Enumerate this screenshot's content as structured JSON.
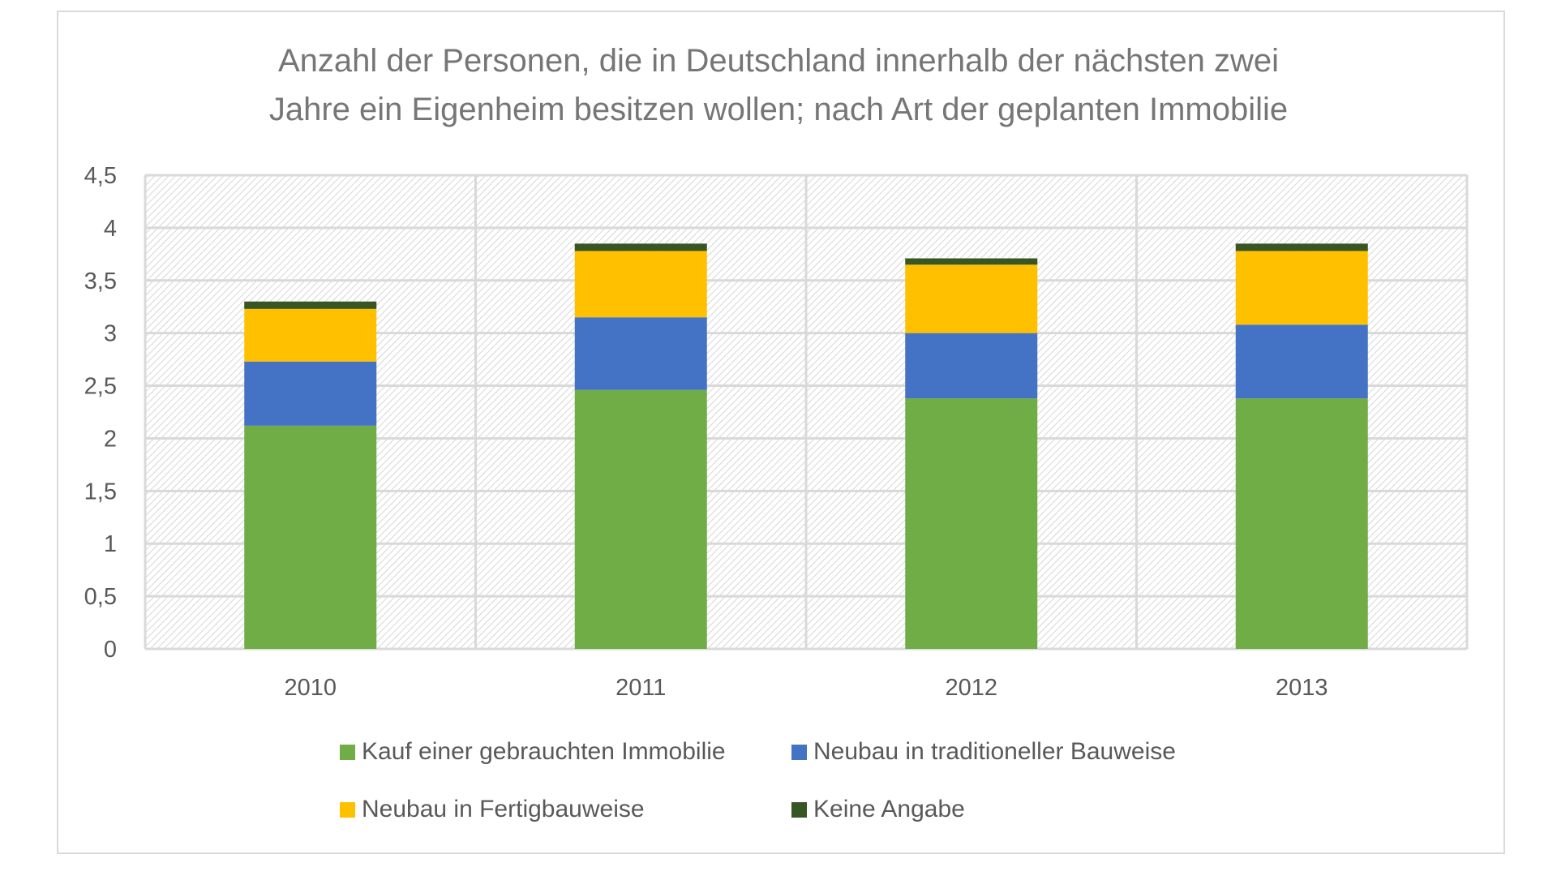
{
  "chart_data": {
    "type": "bar",
    "stacked": true,
    "title": "Anzahl der Personen, die in Deutschland innerhalb der nächsten zwei Jahre ein Eigenheim besitzen wollen; nach Art der geplanten Immobilie",
    "title_lines": [
      "Anzahl der Personen, die in Deutschland innerhalb der nächsten zwei",
      "Jahre ein Eigenheim besitzen wollen; nach Art der geplanten Immobilie"
    ],
    "xlabel": "",
    "ylabel": "",
    "categories": [
      "2010",
      "2011",
      "2012",
      "2013"
    ],
    "ylim": [
      0,
      4.5
    ],
    "yticks": [
      0,
      0.5,
      1,
      1.5,
      2,
      2.5,
      3,
      3.5,
      4,
      4.5
    ],
    "ytick_labels": [
      "0",
      "0,5",
      "1",
      "1,5",
      "2",
      "2,5",
      "3",
      "3,5",
      "4",
      "4,5"
    ],
    "grid": true,
    "legend_position": "bottom",
    "series": [
      {
        "name": "Kauf einer gebrauchten Immobilie",
        "color": "#70ad47",
        "values": [
          2.12,
          2.46,
          2.38,
          2.38
        ]
      },
      {
        "name": "Neubau in traditioneller Bauweise",
        "color": "#4472c4",
        "values": [
          0.61,
          0.69,
          0.62,
          0.7
        ]
      },
      {
        "name": "Neubau in Fertigbauweise",
        "color": "#ffc000",
        "values": [
          0.5,
          0.63,
          0.65,
          0.7
        ]
      },
      {
        "name": "Keine Angabe",
        "color": "#375623",
        "values": [
          0.07,
          0.07,
          0.06,
          0.07
        ]
      }
    ]
  }
}
